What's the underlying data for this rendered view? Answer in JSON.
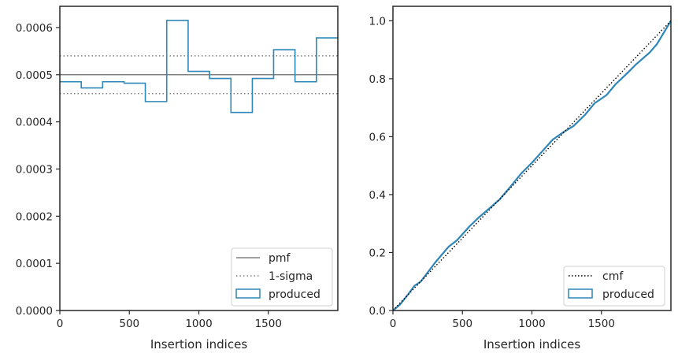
{
  "colors": {
    "pmf_line": "#808080",
    "sigma_line": "#808080",
    "produced": "#2f86b8",
    "cmf_line": "#000000",
    "axes": "#262626"
  },
  "chart_data": [
    {
      "type": "histogram",
      "xlabel": "Insertion indices",
      "ylabel": "",
      "xlim": [
        0,
        2000
      ],
      "ylim": [
        0,
        0.000645
      ],
      "xticks": [
        0,
        500,
        1000,
        1500
      ],
      "yticks": [
        0.0,
        0.0001,
        0.0002,
        0.0003,
        0.0004,
        0.0005,
        0.0006
      ],
      "ytick_labels": [
        "0.0000",
        "0.0001",
        "0.0002",
        "0.0003",
        "0.0004",
        "0.0005",
        "0.0006"
      ],
      "pmf": 0.0005,
      "sigma_band": [
        0.00046,
        0.00054
      ],
      "bin_edges": [
        0,
        154,
        308,
        462,
        615,
        769,
        923,
        1077,
        1231,
        1385,
        1538,
        1692,
        1846,
        2000
      ],
      "bin_values": [
        0.000485,
        0.000472,
        0.000485,
        0.000482,
        0.000443,
        0.000615,
        0.000507,
        0.000492,
        0.00042,
        0.000492,
        0.000553,
        0.000485,
        0.000578
      ],
      "legend": {
        "location": "lower right",
        "entries": [
          "pmf",
          "1-sigma",
          "produced"
        ]
      }
    },
    {
      "type": "line",
      "xlabel": "Insertion indices",
      "ylabel": "",
      "xlim": [
        0,
        2000
      ],
      "ylim": [
        0,
        1.05
      ],
      "xticks": [
        0,
        500,
        1000,
        1500
      ],
      "yticks": [
        0.0,
        0.2,
        0.4,
        0.6,
        0.8,
        1.0
      ],
      "ytick_labels": [
        "0.0",
        "0.2",
        "0.4",
        "0.6",
        "0.8",
        "1.0"
      ],
      "cmf": {
        "x": [
          0,
          2000
        ],
        "y": [
          0,
          1.0
        ]
      },
      "produced": {
        "x": [
          0,
          50,
          100,
          154,
          200,
          308,
          400,
          462,
          550,
          615,
          700,
          769,
          850,
          923,
          1000,
          1077,
          1150,
          1231,
          1300,
          1385,
          1450,
          1538,
          1600,
          1692,
          1750,
          1846,
          1900,
          2000
        ],
        "y": [
          0,
          0.02,
          0.05,
          0.085,
          0.1,
          0.168,
          0.22,
          0.243,
          0.29,
          0.32,
          0.355,
          0.384,
          0.43,
          0.473,
          0.51,
          0.551,
          0.59,
          0.617,
          0.637,
          0.677,
          0.715,
          0.744,
          0.78,
          0.822,
          0.85,
          0.89,
          0.92,
          1.0
        ]
      },
      "legend": {
        "location": "lower right",
        "entries": [
          "cmf",
          "produced"
        ]
      }
    }
  ]
}
